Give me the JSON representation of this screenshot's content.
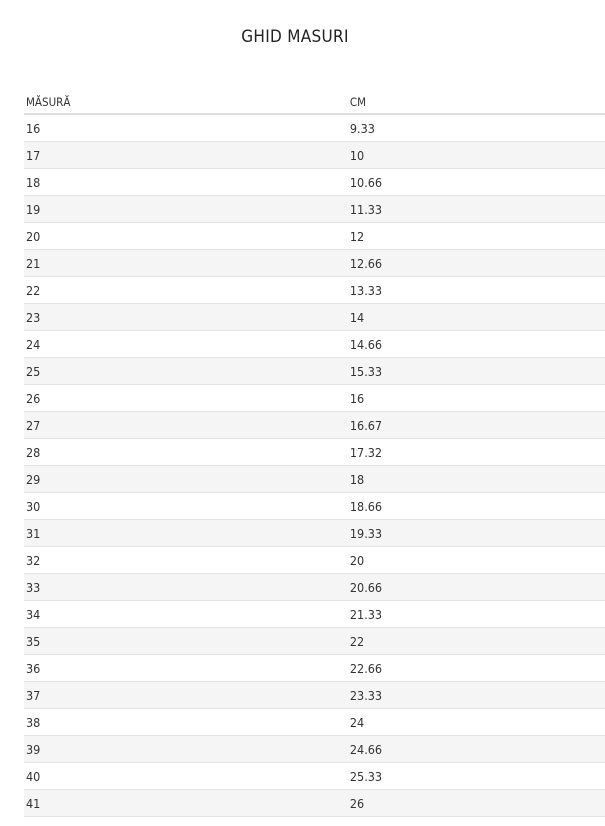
{
  "title": "GHID MASURI",
  "table": {
    "headers": [
      "MĂSURĂ",
      "CM"
    ],
    "rows": [
      [
        "16",
        "9.33"
      ],
      [
        "17",
        "10"
      ],
      [
        "18",
        "10.66"
      ],
      [
        "19",
        "11.33"
      ],
      [
        "20",
        "12"
      ],
      [
        "21",
        "12.66"
      ],
      [
        "22",
        "13.33"
      ],
      [
        "23",
        "14"
      ],
      [
        "24",
        "14.66"
      ],
      [
        "25",
        "15.33"
      ],
      [
        "26",
        "16"
      ],
      [
        "27",
        "16.67"
      ],
      [
        "28",
        "17.32"
      ],
      [
        "29",
        "18"
      ],
      [
        "30",
        "18.66"
      ],
      [
        "31",
        "19.33"
      ],
      [
        "32",
        "20"
      ],
      [
        "33",
        "20.66"
      ],
      [
        "34",
        "21.33"
      ],
      [
        "35",
        "22"
      ],
      [
        "36",
        "22.66"
      ],
      [
        "37",
        "23.33"
      ],
      [
        "38",
        "24"
      ],
      [
        "39",
        "24.66"
      ],
      [
        "40",
        "25.33"
      ],
      [
        "41",
        "26"
      ]
    ]
  }
}
